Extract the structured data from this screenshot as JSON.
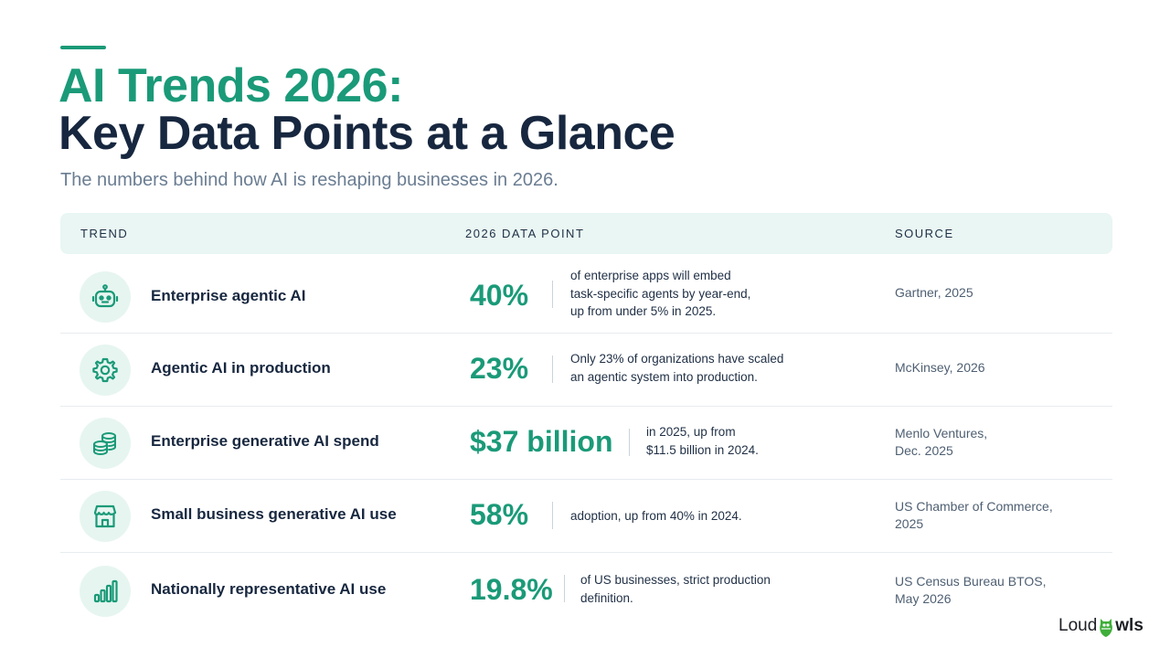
{
  "header": {
    "title_line1": "AI Trends 2026:",
    "title_line2": "Key Data Points at a Glance",
    "subtitle": "The numbers behind how AI is reshaping businesses in 2026."
  },
  "table": {
    "columns": [
      "TREND",
      "2026 DATA POINT",
      "SOURCE"
    ],
    "rows": [
      {
        "icon": "robot-icon",
        "trend": "Enterprise agentic AI",
        "metric": "40%",
        "detail": [
          "of enterprise apps will embed",
          "task-specific agents by year-end,",
          "up from under 5% in 2025."
        ],
        "source": [
          "Gartner, 2025"
        ]
      },
      {
        "icon": "gear-icon",
        "trend": "Agentic AI in production",
        "metric": "23%",
        "detail": [
          "Only 23% of organizations have scaled",
          "an agentic system into production."
        ],
        "source": [
          "McKinsey, 2026"
        ]
      },
      {
        "icon": "coins-icon",
        "trend": "Enterprise generative AI spend",
        "metric": "$37 billion",
        "detail": [
          "in 2025, up from",
          "$11.5 billion in 2024."
        ],
        "source": [
          "Menlo Ventures,",
          "Dec. 2025"
        ]
      },
      {
        "icon": "storefront-icon",
        "trend": "Small business generative AI use",
        "metric": "58%",
        "detail": [
          "adoption, up from 40% in 2024."
        ],
        "source": [
          "US Chamber of Commerce,",
          "2025"
        ]
      },
      {
        "icon": "bar-chart-icon",
        "trend": "Nationally representative AI use",
        "metric": "19.8%",
        "detail": [
          "of US businesses, strict production",
          "definition."
        ],
        "source": [
          "US Census Bureau BTOS,",
          "May 2026"
        ]
      }
    ]
  },
  "logo": {
    "part1": "Loud",
    "part2": "wls",
    "icon": "owl-icon"
  },
  "colors": {
    "accent": "#1a9a78",
    "navy": "#17273f",
    "header_bg": "#e9f6f3"
  }
}
